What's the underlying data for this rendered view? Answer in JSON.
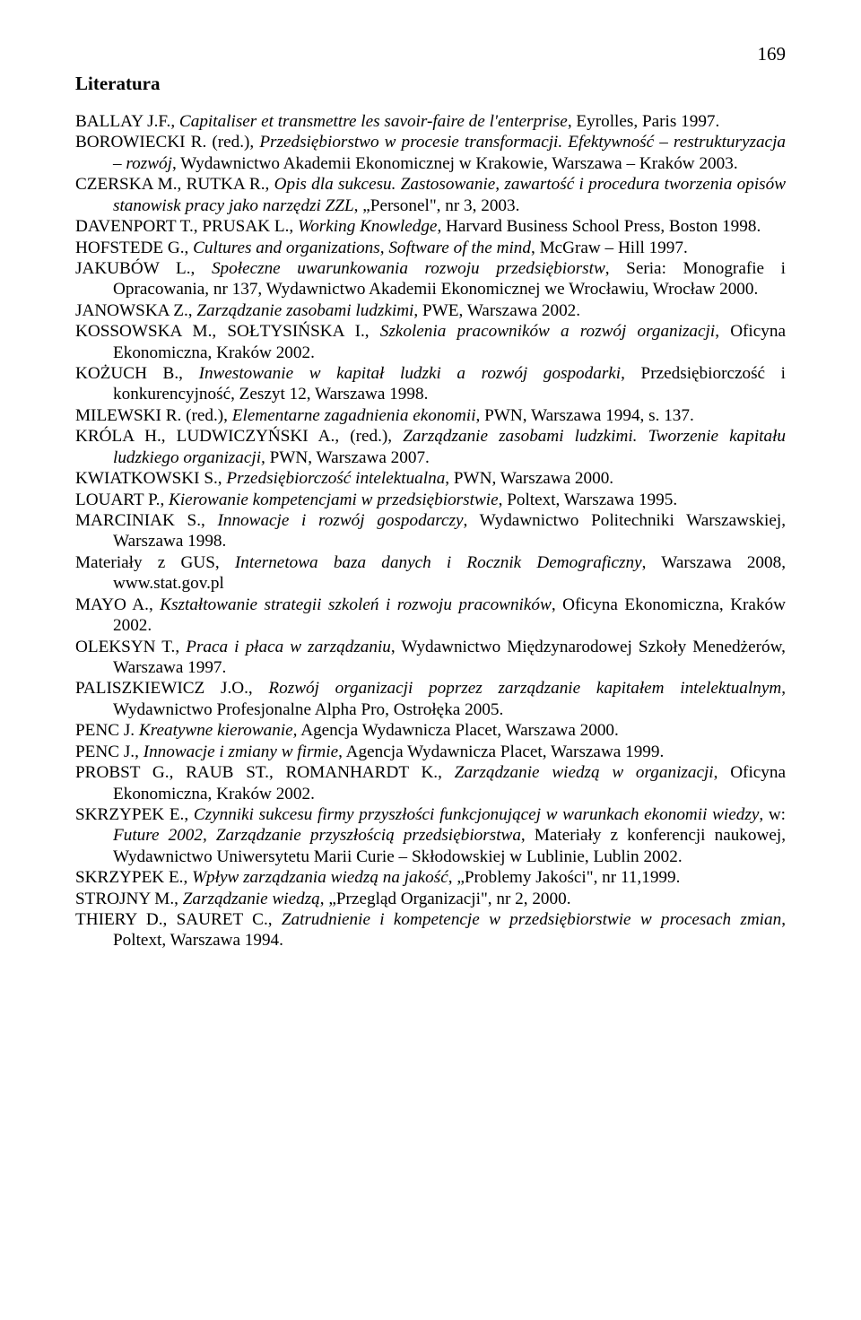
{
  "page_number": "169",
  "heading": "Literatura",
  "refs": [
    [
      {
        "t": "BALLAY J.F., "
      },
      {
        "t": "Capitaliser et transmettre les savoir-faire de l'enterprise",
        "i": true
      },
      {
        "t": ", Eyrolles, Paris 1997."
      }
    ],
    [
      {
        "t": "BOROWIECKI R. (red.), "
      },
      {
        "t": "Przedsiębiorstwo w procesie transformacji. Efektywność – restrukturyzacja – rozwój",
        "i": true
      },
      {
        "t": ", Wydawnictwo Akademii Ekonomicznej w Krakowie, Warszawa – Kraków 2003."
      }
    ],
    [
      {
        "t": "CZERSKA M., RUTKA R., "
      },
      {
        "t": "Opis dla sukcesu. Zastosowanie, zawartość i procedura tworzenia opisów stanowisk pracy jako narzędzi ZZL",
        "i": true
      },
      {
        "t": ", „Personel\", nr 3, 2003."
      }
    ],
    [
      {
        "t": "DAVENPORT T., PRUSAK L., "
      },
      {
        "t": "Working Knowledge",
        "i": true
      },
      {
        "t": ", Harvard Business School Press, Boston 1998."
      }
    ],
    [
      {
        "t": "HOFSTEDE G., "
      },
      {
        "t": "Cultures and organizations, Software of the mind",
        "i": true
      },
      {
        "t": ", McGraw – Hill 1997."
      }
    ],
    [
      {
        "t": "JAKUBÓW L., "
      },
      {
        "t": "Społeczne uwarunkowania rozwoju przedsiębiorstw",
        "i": true
      },
      {
        "t": ", Seria: Monografie i Opracowania, nr 137, Wydawnictwo Akademii Ekonomicznej we Wrocławiu, Wrocław 2000."
      }
    ],
    [
      {
        "t": "JANOWSKA Z., "
      },
      {
        "t": "Zarządzanie zasobami ludzkimi",
        "i": true
      },
      {
        "t": ", PWE, Warszawa 2002."
      }
    ],
    [
      {
        "t": "KOSSOWSKA M., SOŁTYSIŃSKA I., "
      },
      {
        "t": "Szkolenia pracowników a rozwój organizacji",
        "i": true
      },
      {
        "t": ", Oficyna Ekonomiczna, Kraków 2002."
      }
    ],
    [
      {
        "t": "KOŻUCH B., "
      },
      {
        "t": "Inwestowanie w kapitał ludzki a rozwój gospodarki",
        "i": true
      },
      {
        "t": ", Przedsiębiorczość i konkurencyjność, Zeszyt 12, Warszawa 1998."
      }
    ],
    [
      {
        "t": "MILEWSKI R. (red.), "
      },
      {
        "t": "Elementarne zagadnienia ekonomii",
        "i": true
      },
      {
        "t": ", PWN, Warszawa 1994, s. 137."
      }
    ],
    [
      {
        "t": "KRÓLA H., LUDWICZYŃSKI A., (red.), "
      },
      {
        "t": "Zarządzanie zasobami ludzkimi. Tworzenie kapitału ludzkiego organizacji,",
        "i": true
      },
      {
        "t": " PWN, Warszawa 2007."
      }
    ],
    [
      {
        "t": "KWIATKOWSKI S., "
      },
      {
        "t": "Przedsiębiorczość intelektualna",
        "i": true
      },
      {
        "t": ", PWN, Warszawa 2000."
      }
    ],
    [
      {
        "t": "LOUART P., "
      },
      {
        "t": "Kierowanie kompetencjami w przedsiębiorstwie",
        "i": true
      },
      {
        "t": ", Poltext, Warszawa 1995."
      }
    ],
    [
      {
        "t": "MARCINIAK S., "
      },
      {
        "t": "Innowacje i rozwój gospodarczy",
        "i": true
      },
      {
        "t": ", Wydawnictwo Politechniki Warszawskiej, Warszawa 1998."
      }
    ],
    [
      {
        "t": "Materiały z GUS, "
      },
      {
        "t": "Internetowa baza danych i Rocznik Demograficzny",
        "i": true
      },
      {
        "t": ", Warszawa 2008, www.stat.gov.pl"
      }
    ],
    [
      {
        "t": "MAYO A., "
      },
      {
        "t": "Kształtowanie strategii szkoleń i rozwoju pracowników",
        "i": true
      },
      {
        "t": ", Oficyna Ekonomiczna, Kraków 2002."
      }
    ],
    [
      {
        "t": "OLEKSYN T., "
      },
      {
        "t": "Praca i płaca w zarządzaniu",
        "i": true
      },
      {
        "t": ", Wydawnictwo Międzynarodowej Szkoły Menedżerów, Warszawa 1997."
      }
    ],
    [
      {
        "t": "PALISZKIEWICZ J.O., "
      },
      {
        "t": "Rozwój organizacji poprzez zarządzanie kapitałem intelektualnym",
        "i": true
      },
      {
        "t": ", Wydawnictwo Profesjonalne Alpha Pro, Ostrołęka 2005."
      }
    ],
    [
      {
        "t": "PENC J. "
      },
      {
        "t": "Kreatywne kierowanie,",
        "i": true
      },
      {
        "t": " Agencja Wydawnicza Placet, Warszawa 2000."
      }
    ],
    [
      {
        "t": "PENC J., "
      },
      {
        "t": "Innowacje i zmiany w firmie",
        "i": true
      },
      {
        "t": ", Agencja Wydawnicza Placet, Warszawa 1999."
      }
    ],
    [
      {
        "t": "PROBST G., RAUB ST., ROMANHARDT K., "
      },
      {
        "t": "Zarządzanie wiedzą w organizacji",
        "i": true
      },
      {
        "t": ", Oficyna Ekonomiczna, Kraków 2002."
      }
    ],
    [
      {
        "t": "SKRZYPEK E., "
      },
      {
        "t": "Czynniki sukcesu firmy przyszłości funkcjonującej w warunkach ekonomii wiedzy",
        "i": true
      },
      {
        "t": ", w: "
      },
      {
        "t": "Future 2002, Zarządzanie przyszłością przedsiębiorstwa",
        "i": true
      },
      {
        "t": ", Materiały z konferencji naukowej, Wydawnictwo Uniwersytetu Marii Curie – Skłodowskiej w Lublinie, Lublin 2002."
      }
    ],
    [
      {
        "t": "SKRZYPEK E., "
      },
      {
        "t": "Wpływ zarządzania wiedzą na jakość",
        "i": true
      },
      {
        "t": ", „Problemy Jakości\", nr 11,1999."
      }
    ],
    [
      {
        "t": "STROJNY M., "
      },
      {
        "t": "Zarządzanie wiedzą",
        "i": true
      },
      {
        "t": ", „Przegląd Organizacji\", nr 2, 2000."
      }
    ],
    [
      {
        "t": "THIERY D., SAURET C., "
      },
      {
        "t": "Zatrudnienie i kompetencje w przedsiębiorstwie w procesach zmian",
        "i": true
      },
      {
        "t": ", Poltext, Warszawa 1994."
      }
    ]
  ]
}
